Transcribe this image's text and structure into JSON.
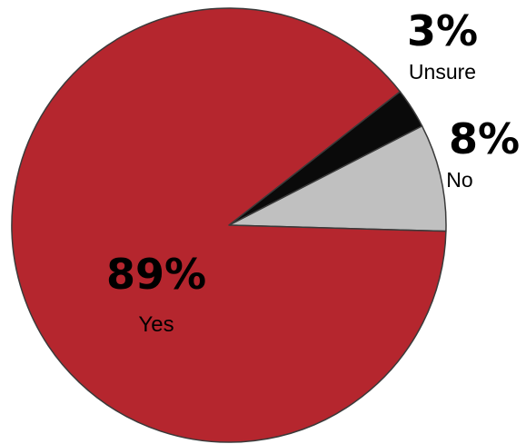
{
  "chart_data": {
    "type": "pie",
    "slices": [
      {
        "label": "Yes",
        "value": 89,
        "value_label": "89%",
        "color": "#b5262e"
      },
      {
        "label": "No",
        "value": 8,
        "value_label": "8%",
        "color": "#c0c0c0"
      },
      {
        "label": "Unsure",
        "value": 3,
        "value_label": "3%",
        "color": "#0a0a0a"
      }
    ],
    "slice_outline_color": "#3a3a3a",
    "title": "",
    "legend": "none"
  }
}
